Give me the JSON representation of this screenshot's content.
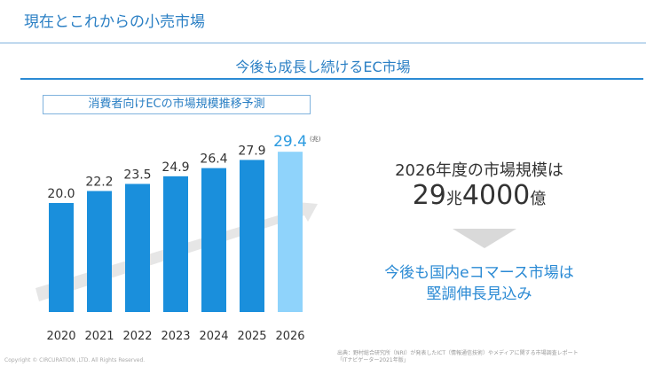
{
  "header": {
    "title": "現在とこれからの小売市場"
  },
  "section": {
    "title": "今後も成長し続けるEC市場"
  },
  "chart_data": {
    "type": "bar",
    "title": "消費者向けECの市場規模推移予測",
    "categories": [
      "2020",
      "2021",
      "2022",
      "2023",
      "2024",
      "2025",
      "2026"
    ],
    "values": [
      20.0,
      22.2,
      23.5,
      24.9,
      26.4,
      27.9,
      29.4
    ],
    "value_labels": [
      "20.0",
      "22.2",
      "23.5",
      "24.9",
      "26.4",
      "27.9",
      "29.4"
    ],
    "unit": "(兆)",
    "ylim": [
      0,
      30
    ],
    "grid": false,
    "colors": {
      "actual": "#1a8fdc",
      "forecast": "#8fd3fb",
      "forecast_label": "#2a9ae0",
      "arrow": "#e0e0e0"
    }
  },
  "summary": {
    "line1": "2026年度の市場規模は",
    "value_a": "29",
    "unit_a": "兆",
    "value_b": "4000",
    "unit_b": "億"
  },
  "conclusion": {
    "line1": "今後も国内eコマース市場は",
    "line2": "堅調伸長見込み"
  },
  "footer": {
    "copyright": "Copyright © CIRCURATION ,LTD. All Rights Reserved.",
    "source_line1": "出典：野村総合研究所（NRI）が発表したICT（情報通信技術）やメディアに関する市場調査レポート",
    "source_line2": "「ITナビゲーター2021年版」"
  }
}
